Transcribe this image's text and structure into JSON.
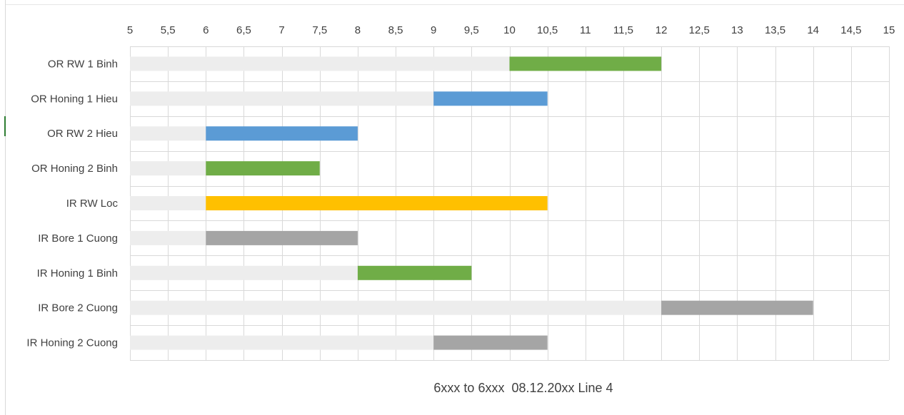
{
  "chart_data": {
    "type": "bar",
    "orientation": "horizontal",
    "stacked": true,
    "categories": [
      "OR RW 1 Binh",
      "OR Honing 1 Hieu",
      "OR RW 2 Hieu",
      "OR Honing 2 Binh",
      "IR RW Loc",
      "IR Bore 1 Cuong",
      "IR Honing 1 Binh",
      "IR Bore 2 Cuong",
      "IR Honing 2 Cuong"
    ],
    "starts": [
      10,
      9,
      6,
      6,
      6,
      6,
      8,
      12,
      9
    ],
    "ends": [
      12,
      10.5,
      8,
      7.5,
      10.5,
      8,
      9.5,
      14,
      10.5
    ],
    "bar_colors": [
      "#70ad47",
      "#5b9bd5",
      "#5b9bd5",
      "#70ad47",
      "#ffc000",
      "#a5a5a5",
      "#70ad47",
      "#a5a5a5",
      "#a5a5a5"
    ],
    "base_color": "#ededed",
    "xlim": [
      5,
      15
    ],
    "xtick_labels": [
      "5",
      "5,5",
      "6",
      "6,5",
      "7",
      "7,5",
      "8",
      "8,5",
      "9",
      "9,5",
      "10",
      "10,5",
      "11",
      "11,5",
      "12",
      "12,5",
      "13",
      "13,5",
      "14",
      "14,5",
      "15"
    ],
    "x_axis_position": "top",
    "grid": true,
    "legend": "none",
    "title": "6xxx to 6xxx  08.12.20xx Line 4"
  }
}
